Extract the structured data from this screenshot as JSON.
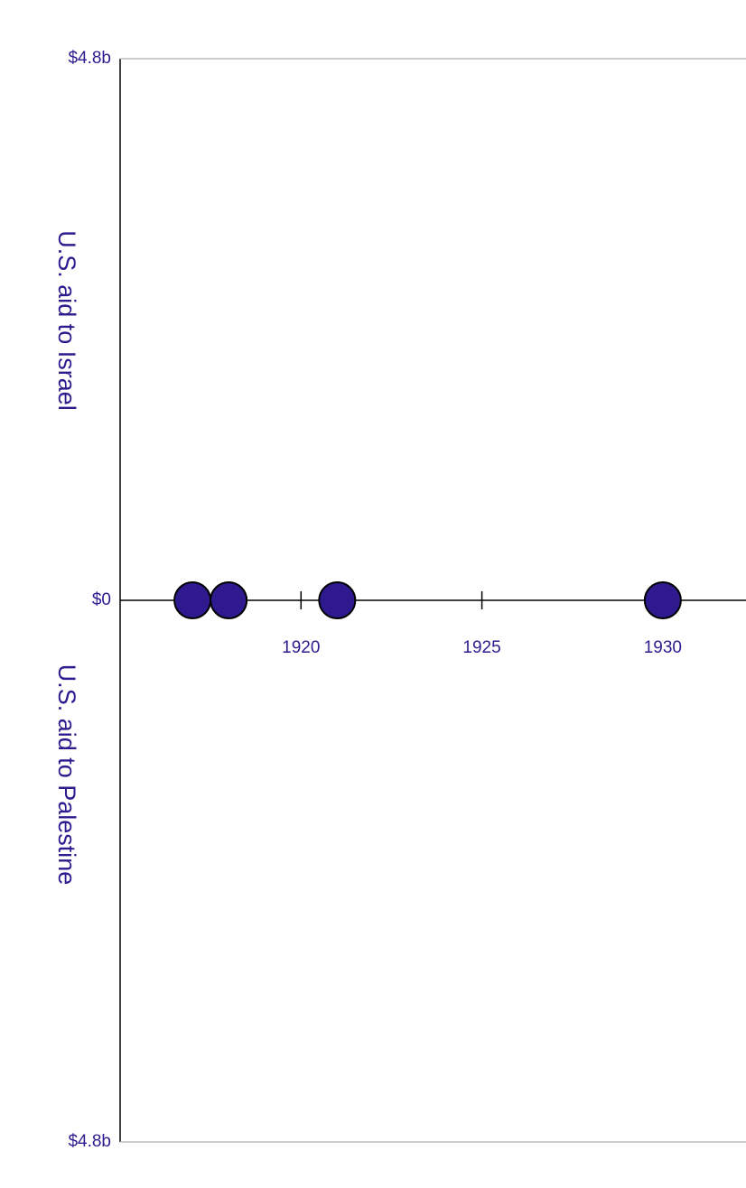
{
  "chart_data": {
    "type": "scatter",
    "ylabel_positive": "U.S. aid to Israel",
    "ylabel_negative": "U.S. aid to Palestine",
    "x": [
      1917,
      1918,
      1921,
      1930
    ],
    "values": [
      0,
      0,
      0,
      0
    ],
    "color": "#2e1a8e",
    "xlim": [
      1915,
      1932.3
    ],
    "xticks": [
      1920,
      1925,
      1930
    ],
    "ylim": [
      -4.8,
      4.8
    ],
    "yticks": [
      {
        "value": 4.8,
        "label": "$4.8b"
      },
      {
        "value": 0,
        "label": "$0"
      },
      {
        "value": -4.8,
        "label": "$4.8b"
      }
    ]
  }
}
